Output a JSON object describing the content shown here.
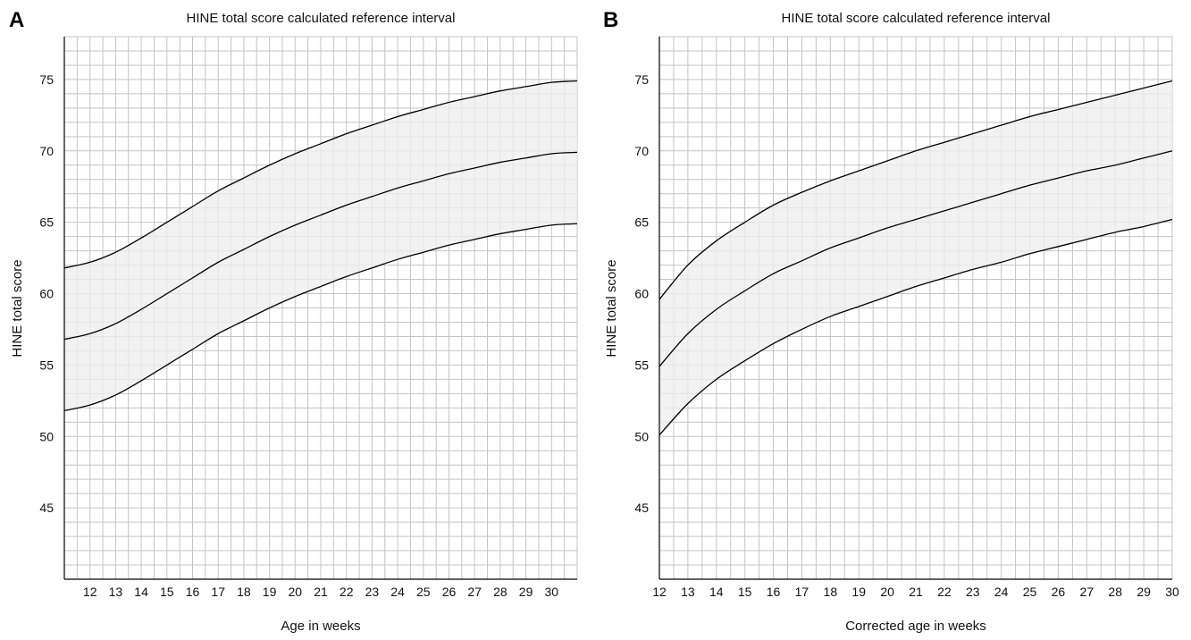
{
  "chart_data": [
    {
      "panel": "A",
      "type": "area",
      "title": "HINE total score calculated reference interval",
      "xlabel": "Age in weeks",
      "ylabel": "HINE total score",
      "xlim": [
        11,
        31
      ],
      "ylim": [
        40,
        78
      ],
      "x_ticks": [
        "12",
        "13",
        "14",
        "15",
        "16",
        "17",
        "18",
        "19",
        "20",
        "21",
        "22",
        "23",
        "24",
        "25",
        "26",
        "27",
        "28",
        "29",
        "30"
      ],
      "y_ticks": [
        "45",
        "50",
        "55",
        "60",
        "65",
        "70",
        "75"
      ],
      "x_minor_step": 0.5,
      "y_minor_step": 1,
      "grid": true,
      "band_fill": "#eeeeee",
      "grid_color": "#c4c4c4",
      "line_color": "#000000",
      "x": [
        11,
        12,
        13,
        14,
        15,
        16,
        17,
        18,
        19,
        20,
        21,
        22,
        23,
        24,
        25,
        26,
        27,
        28,
        29,
        30,
        31
      ],
      "series": [
        {
          "role": "upper",
          "values": [
            61.8,
            62.2,
            62.9,
            63.9,
            65.0,
            66.1,
            67.2,
            68.1,
            69.0,
            69.8,
            70.5,
            71.2,
            71.8,
            72.4,
            72.9,
            73.4,
            73.8,
            74.2,
            74.5,
            74.8,
            74.9
          ]
        },
        {
          "role": "median",
          "values": [
            56.8,
            57.2,
            57.9,
            58.9,
            60.0,
            61.1,
            62.2,
            63.1,
            64.0,
            64.8,
            65.5,
            66.2,
            66.8,
            67.4,
            67.9,
            68.4,
            68.8,
            69.2,
            69.5,
            69.8,
            69.9
          ]
        },
        {
          "role": "lower",
          "values": [
            51.8,
            52.2,
            52.9,
            53.9,
            55.0,
            56.1,
            57.2,
            58.1,
            59.0,
            59.8,
            60.5,
            61.2,
            61.8,
            62.4,
            62.9,
            63.4,
            63.8,
            64.2,
            64.5,
            64.8,
            64.9
          ]
        }
      ]
    },
    {
      "panel": "B",
      "type": "area",
      "title": "HINE total score calculated reference interval",
      "xlabel": "Corrected age in weeks",
      "ylabel": "HINE total score",
      "xlim": [
        12,
        30
      ],
      "ylim": [
        40,
        78
      ],
      "x_ticks": [
        "12",
        "13",
        "14",
        "15",
        "16",
        "17",
        "18",
        "19",
        "20",
        "21",
        "22",
        "23",
        "24",
        "25",
        "26",
        "27",
        "28",
        "29",
        "30"
      ],
      "y_ticks": [
        "45",
        "50",
        "55",
        "60",
        "65",
        "70",
        "75"
      ],
      "x_minor_step": 0.5,
      "y_minor_step": 1,
      "grid": true,
      "band_fill": "#eeeeee",
      "grid_color": "#c4c4c4",
      "line_color": "#000000",
      "x": [
        12,
        13,
        14,
        15,
        16,
        17,
        18,
        19,
        20,
        21,
        22,
        23,
        24,
        25,
        26,
        27,
        28,
        29,
        30
      ],
      "series": [
        {
          "role": "upper",
          "values": [
            59.6,
            62.0,
            63.7,
            65.0,
            66.2,
            67.1,
            67.9,
            68.6,
            69.3,
            70.0,
            70.6,
            71.2,
            71.8,
            72.4,
            72.9,
            73.4,
            73.9,
            74.4,
            74.9
          ]
        },
        {
          "role": "median",
          "values": [
            54.9,
            57.2,
            58.9,
            60.2,
            61.4,
            62.3,
            63.2,
            63.9,
            64.6,
            65.2,
            65.8,
            66.4,
            67.0,
            67.6,
            68.1,
            68.6,
            69.0,
            69.5,
            70.0
          ]
        },
        {
          "role": "lower",
          "values": [
            50.1,
            52.3,
            54.0,
            55.3,
            56.5,
            57.5,
            58.4,
            59.1,
            59.8,
            60.5,
            61.1,
            61.7,
            62.2,
            62.8,
            63.3,
            63.8,
            64.3,
            64.7,
            65.2
          ]
        }
      ]
    }
  ]
}
